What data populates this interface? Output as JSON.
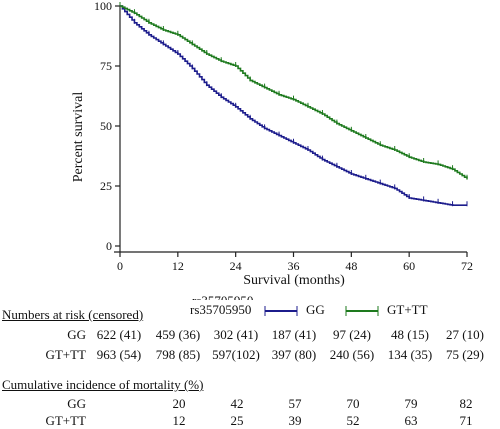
{
  "chart_data": {
    "type": "line",
    "ylabel": "Percent survival",
    "xlabel": "Survival (months)",
    "xlim": [
      0,
      72
    ],
    "ylim": [
      0,
      100
    ],
    "x_ticks": [
      "0",
      "12",
      "24",
      "36",
      "48",
      "60",
      "72"
    ],
    "y_ticks": [
      "0",
      "25",
      "50",
      "75",
      "100"
    ],
    "legend": {
      "title": "rs35705950",
      "placement": "bottom",
      "items": [
        "GG",
        "GT+TT"
      ]
    },
    "series": [
      {
        "name": "GG",
        "color": "#1c1c8c",
        "x": [
          0,
          3,
          6,
          9,
          12,
          15,
          18,
          21,
          24,
          27,
          30,
          33,
          36,
          39,
          42,
          45,
          48,
          51,
          54,
          57,
          60,
          63,
          66,
          69,
          72
        ],
        "y": [
          100,
          93,
          88,
          84,
          80,
          74,
          67,
          62,
          58,
          53,
          49,
          46,
          43,
          40,
          36,
          33,
          30,
          28,
          26,
          24,
          20,
          19,
          18,
          17,
          17
        ]
      },
      {
        "name": "GT+TT",
        "color": "#1e7a1e",
        "x": [
          0,
          3,
          6,
          9,
          12,
          15,
          18,
          21,
          24,
          27,
          30,
          33,
          36,
          39,
          42,
          45,
          48,
          51,
          54,
          57,
          60,
          63,
          66,
          69,
          72
        ],
        "y": [
          100,
          97,
          93,
          90,
          88,
          84,
          80,
          77,
          75,
          69,
          66,
          63,
          61,
          58,
          55,
          51,
          48,
          45,
          42,
          40,
          37,
          35,
          34,
          32,
          28
        ]
      }
    ]
  },
  "risk_table": {
    "title": "Numbers at risk  (censored)",
    "rows": [
      {
        "label": "GG",
        "values": [
          "622 (41)",
          "459 (36)",
          "302 (41)",
          "187 (41)",
          "97 (24)",
          "48 (15)",
          "27 (10)"
        ]
      },
      {
        "label": "GT+TT",
        "values": [
          "963 (54)",
          "798 (85)",
          "597(102)",
          "397 (80)",
          "240 (56)",
          "134 (35)",
          "75 (29)"
        ]
      }
    ]
  },
  "mortality_table": {
    "title": "Cumulative incidence of mortality  (%)",
    "rows": [
      {
        "label": "GG",
        "values": [
          "20",
          "42",
          "57",
          "70",
          "79",
          "82"
        ]
      },
      {
        "label": "GT+TT",
        "values": [
          "12",
          "25",
          "39",
          "52",
          "63",
          "71"
        ]
      }
    ]
  }
}
